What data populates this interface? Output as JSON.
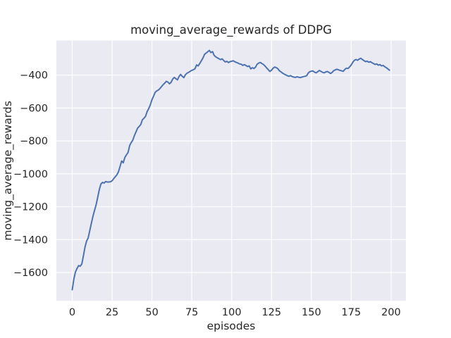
{
  "chart_data": {
    "type": "line",
    "title": "moving_average_rewards of DDPG",
    "xlabel": "episodes",
    "ylabel": "moving_average_rewards",
    "legend": null,
    "grid": true,
    "plot_bg": "#EAEAF2",
    "grid_color": "#FFFFFF",
    "line_color": "#4C72B0",
    "text_color": "#262626",
    "xlim": [
      -9.95,
      209.3
    ],
    "ylim": [
      -1772,
      -190
    ],
    "x_ticks": [
      0,
      25,
      50,
      75,
      100,
      125,
      150,
      175,
      200
    ],
    "x_tick_labels": [
      "0",
      "25",
      "50",
      "75",
      "100",
      "125",
      "150",
      "175",
      "200"
    ],
    "y_ticks": [
      -400,
      -600,
      -800,
      -1000,
      -1200,
      -1400,
      -1600
    ],
    "y_tick_labels": [
      "−400",
      "−600",
      "−800",
      "−1000",
      "−1200",
      "−1400",
      "−1600"
    ],
    "x": "episode index 0-199",
    "values": [
      -1705,
      -1640,
      -1598,
      -1575,
      -1558,
      -1562,
      -1548,
      -1500,
      -1446,
      -1408,
      -1390,
      -1345,
      -1300,
      -1258,
      -1222,
      -1188,
      -1142,
      -1095,
      -1062,
      -1052,
      -1056,
      -1047,
      -1050,
      -1050,
      -1048,
      -1042,
      -1030,
      -1018,
      -1006,
      -988,
      -955,
      -922,
      -933,
      -900,
      -885,
      -870,
      -828,
      -810,
      -795,
      -768,
      -745,
      -722,
      -712,
      -700,
      -672,
      -662,
      -650,
      -622,
      -603,
      -580,
      -550,
      -528,
      -505,
      -496,
      -491,
      -482,
      -470,
      -458,
      -449,
      -438,
      -442,
      -453,
      -444,
      -424,
      -414,
      -422,
      -429,
      -408,
      -396,
      -407,
      -415,
      -398,
      -388,
      -383,
      -377,
      -371,
      -367,
      -361,
      -338,
      -344,
      -329,
      -312,
      -296,
      -274,
      -266,
      -258,
      -250,
      -263,
      -257,
      -280,
      -289,
      -295,
      -300,
      -306,
      -301,
      -311,
      -320,
      -316,
      -324,
      -318,
      -316,
      -313,
      -319,
      -323,
      -327,
      -332,
      -334,
      -341,
      -336,
      -342,
      -348,
      -344,
      -362,
      -355,
      -360,
      -351,
      -334,
      -327,
      -323,
      -330,
      -336,
      -345,
      -357,
      -367,
      -378,
      -370,
      -358,
      -351,
      -355,
      -361,
      -374,
      -381,
      -388,
      -394,
      -399,
      -404,
      -407,
      -403,
      -409,
      -412,
      -414,
      -410,
      -413,
      -415,
      -412,
      -409,
      -407,
      -404,
      -388,
      -379,
      -376,
      -375,
      -382,
      -386,
      -379,
      -372,
      -377,
      -383,
      -386,
      -381,
      -378,
      -383,
      -390,
      -384,
      -373,
      -368,
      -364,
      -368,
      -371,
      -374,
      -377,
      -365,
      -358,
      -360,
      -350,
      -338,
      -322,
      -310,
      -305,
      -310,
      -302,
      -298,
      -305,
      -312,
      -318,
      -315,
      -322,
      -318,
      -325,
      -330,
      -335,
      -332,
      -340,
      -336,
      -344,
      -341,
      -349,
      -355,
      -362,
      -370
    ]
  }
}
